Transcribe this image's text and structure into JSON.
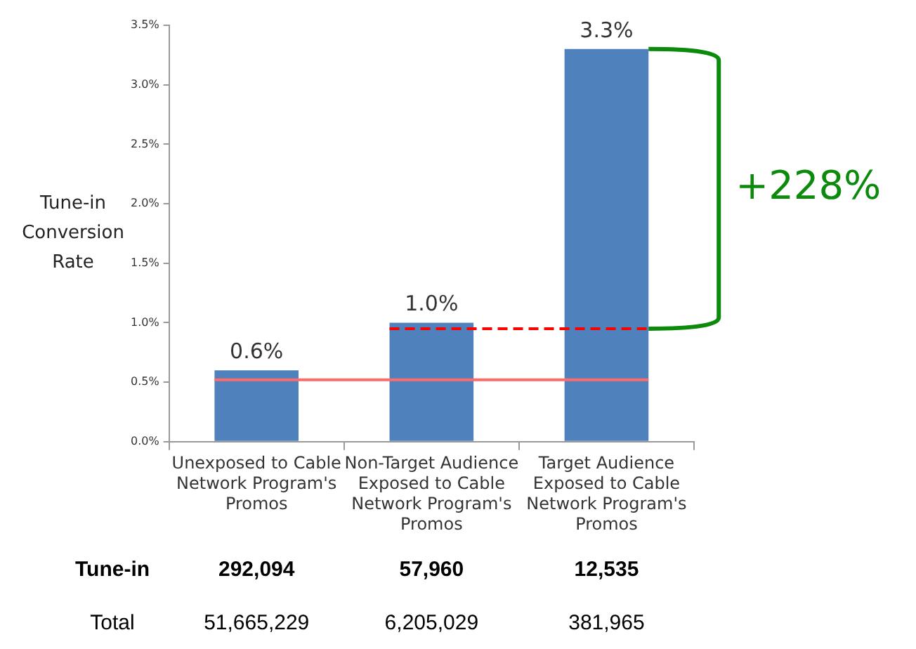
{
  "chart_data": {
    "type": "bar",
    "ylabel": "Tune-in Conversion Rate",
    "categories": [
      "Unexposed to Cable Network Program's Promos",
      "Non-Target Audience Exposed to Cable Network Program's Promos",
      "Target Audience Exposed to Cable Network Program's Promos"
    ],
    "values": [
      0.6,
      1.0,
      3.3
    ],
    "color": "#4f81bd",
    "value_labels": [
      "0.6%",
      "1.0%",
      "3.3%"
    ],
    "ylim": [
      0,
      3.5
    ],
    "yticks": [
      {
        "value": 0,
        "label": "0.0%"
      },
      {
        "value": 0.5,
        "label": "0.5%"
      },
      {
        "value": 1,
        "label": "1.0%"
      },
      {
        "value": 1.5,
        "label": "1.5%"
      },
      {
        "value": 2,
        "label": "2.0%"
      },
      {
        "value": 2.5,
        "label": "2.5%"
      },
      {
        "value": 3,
        "label": "3.0%"
      },
      {
        "value": 3.5,
        "label": "3.5%"
      }
    ],
    "ref_lines": [
      {
        "axis": "y",
        "value": 0.52,
        "color": "#ff6b6b",
        "line_style": "solid"
      },
      {
        "axis": "y",
        "value": 0.95,
        "color": "#ff0000",
        "line_style": "dashed"
      }
    ],
    "annotations": [
      "+228%",
      "Tune-in",
      "292,094",
      "57,960",
      "12,535",
      "Total",
      "51,665,229",
      "6,205,029",
      "381,965"
    ],
    "legend": false
  }
}
